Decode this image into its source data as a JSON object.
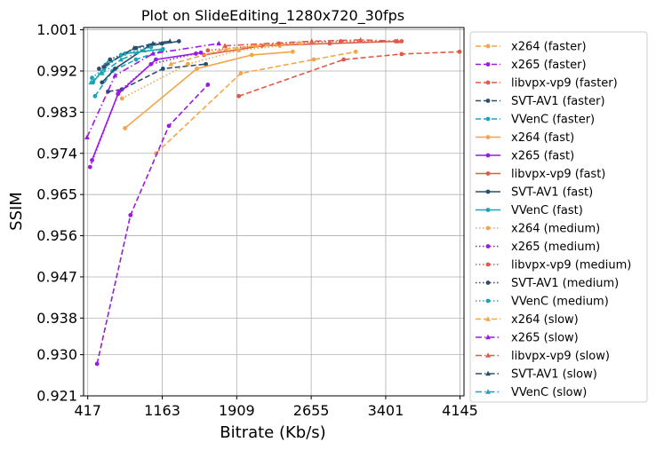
{
  "chart_data": {
    "type": "line",
    "title": "Plot on SlideEditing_1280x720_30fps",
    "xlabel": "Bitrate (Kb/s)",
    "ylabel": "SSIM",
    "xlim": [
      375,
      4185
    ],
    "ylim": [
      0.921,
      1.0015
    ],
    "x_ticks": [
      417,
      1163,
      1909,
      2655,
      3401,
      4145
    ],
    "y_ticks": [
      0.921,
      0.93,
      0.938,
      0.947,
      0.956,
      0.965,
      0.974,
      0.983,
      0.992,
      1.001
    ],
    "x_tick_labels": [
      "417",
      "1163",
      "1909",
      "2655",
      "3401",
      "4145"
    ],
    "y_tick_labels": [
      "0.921",
      "0.930",
      "0.938",
      "0.947",
      "0.956",
      "0.965",
      "0.974",
      "0.983",
      "0.992",
      "1.001"
    ],
    "grid": true,
    "legend_position": "outside-right",
    "series": [
      {
        "name": "x264 (faster)",
        "color": "#f4a54a",
        "dash": "dashed",
        "marker": "circle",
        "points": [
          [
            1100,
            0.974
          ],
          [
            1950,
            0.9915
          ],
          [
            2680,
            0.9945
          ],
          [
            3100,
            0.9962
          ]
        ]
      },
      {
        "name": "x265 (faster)",
        "color": "#9b19e6",
        "dash": "dashed",
        "marker": "circle",
        "points": [
          [
            510,
            0.928
          ],
          [
            845,
            0.9605
          ],
          [
            1230,
            0.98
          ],
          [
            1620,
            0.989
          ]
        ]
      },
      {
        "name": "libvpx-vp9 (faster)",
        "color": "#e05a44",
        "dash": "dashed",
        "marker": "circle",
        "points": [
          [
            1930,
            0.9865
          ],
          [
            2980,
            0.9945
          ],
          [
            3560,
            0.9957
          ],
          [
            4140,
            0.9962
          ]
        ]
      },
      {
        "name": "SVT-AV1 (faster)",
        "color": "#2a4d6e",
        "dash": "dashed",
        "marker": "circle",
        "points": [
          [
            620,
            0.9875
          ],
          [
            760,
            0.988
          ],
          [
            1170,
            0.9925
          ],
          [
            1600,
            0.9935
          ]
        ]
      },
      {
        "name": "VVenC (faster)",
        "color": "#1aa5b5",
        "dash": "dashed",
        "marker": "circle",
        "points": [
          [
            490,
            0.9865
          ],
          [
            665,
            0.992
          ],
          [
            900,
            0.9945
          ],
          [
            1160,
            0.9965
          ]
        ]
      },
      {
        "name": "x264 (fast)",
        "color": "#f4a54a",
        "dash": "solid",
        "marker": "circle",
        "points": [
          [
            790,
            0.9795
          ],
          [
            1510,
            0.9925
          ],
          [
            2060,
            0.9955
          ],
          [
            2470,
            0.9962
          ]
        ]
      },
      {
        "name": "x265 (fast)",
        "color": "#9b19e6",
        "dash": "solid",
        "marker": "circle",
        "points": [
          [
            460,
            0.9725
          ],
          [
            720,
            0.987
          ],
          [
            1100,
            0.9945
          ],
          [
            1550,
            0.996
          ]
        ]
      },
      {
        "name": "libvpx-vp9 (fast)",
        "color": "#e05a44",
        "dash": "solid",
        "marker": "circle",
        "points": [
          [
            1580,
            0.9955
          ],
          [
            2160,
            0.9975
          ],
          [
            2840,
            0.998
          ],
          [
            3560,
            0.9985
          ]
        ]
      },
      {
        "name": "SVT-AV1 (fast)",
        "color": "#2a4d6e",
        "dash": "solid",
        "marker": "circle",
        "points": [
          [
            560,
            0.9895
          ],
          [
            690,
            0.9925
          ],
          [
            1030,
            0.9975
          ],
          [
            1330,
            0.9985
          ]
        ]
      },
      {
        "name": "VVenC (fast)",
        "color": "#1aa5b5",
        "dash": "solid",
        "marker": "circle",
        "points": [
          [
            470,
            0.9895
          ],
          [
            610,
            0.9935
          ],
          [
            790,
            0.9958
          ],
          [
            1170,
            0.9968
          ]
        ]
      },
      {
        "name": "x264 (medium)",
        "color": "#f4a54a",
        "dash": "dotted",
        "marker": "circle",
        "points": [
          [
            760,
            0.986
          ],
          [
            1420,
            0.9935
          ],
          [
            1930,
            0.9965
          ],
          [
            2340,
            0.9975
          ]
        ]
      },
      {
        "name": "x265 (medium)",
        "color": "#9b19e6",
        "dash": "dotted",
        "marker": "circle",
        "points": [
          [
            440,
            0.971
          ],
          [
            730,
            0.9875
          ],
          [
            1050,
            0.9935
          ],
          [
            1500,
            0.9958
          ]
        ]
      },
      {
        "name": "libvpx-vp9 (medium)",
        "color": "#e05a44",
        "dash": "dotted",
        "marker": "circle",
        "points": [
          [
            1620,
            0.9965
          ],
          [
            2330,
            0.998
          ],
          [
            2950,
            0.9985
          ],
          [
            3500,
            0.9985
          ]
        ]
      },
      {
        "name": "SVT-AV1 (medium)",
        "color": "#2a4d6e",
        "dash": "dotted",
        "marker": "circle",
        "points": [
          [
            530,
            0.9925
          ],
          [
            640,
            0.9945
          ],
          [
            900,
            0.997
          ],
          [
            1160,
            0.998
          ]
        ]
      },
      {
        "name": "VVenC (medium)",
        "color": "#1aa5b5",
        "dash": "dotted",
        "marker": "circle",
        "points": [
          [
            460,
            0.9905
          ],
          [
            580,
            0.9925
          ],
          [
            750,
            0.9955
          ],
          [
            1050,
            0.9972
          ]
        ]
      },
      {
        "name": "x264 (slow)",
        "color": "#f4a54a",
        "dash": "dashed",
        "marker": "triangle",
        "points": [
          [
            1250,
            0.9935
          ],
          [
            1800,
            0.9968
          ],
          [
            2100,
            0.9975
          ],
          [
            2550,
            0.998
          ]
        ]
      },
      {
        "name": "x265 (slow)",
        "color": "#9b19e6",
        "dash": "dashdot",
        "marker": "triangle",
        "points": [
          [
            410,
            0.9775
          ],
          [
            690,
            0.991
          ],
          [
            1070,
            0.9958
          ],
          [
            1730,
            0.998
          ]
        ]
      },
      {
        "name": "libvpx-vp9 (slow)",
        "color": "#e05a44",
        "dash": "dashdot",
        "marker": "triangle",
        "points": [
          [
            1790,
            0.9975
          ],
          [
            2660,
            0.9985
          ],
          [
            3150,
            0.9988
          ],
          [
            3520,
            0.9985
          ]
        ]
      },
      {
        "name": "SVT-AV1 (slow)",
        "color": "#2a4d6e",
        "dash": "dashdot",
        "marker": "triangle",
        "points": [
          [
            580,
            0.993
          ],
          [
            880,
            0.997
          ],
          [
            1070,
            0.998
          ],
          [
            1240,
            0.9985
          ]
        ]
      },
      {
        "name": "VVenC (slow)",
        "color": "#1aa5b5",
        "dash": "dashdot",
        "marker": "triangle",
        "points": [
          [
            450,
            0.9895
          ],
          [
            560,
            0.9915
          ],
          [
            750,
            0.9945
          ],
          [
            980,
            0.9965
          ]
        ]
      }
    ]
  }
}
